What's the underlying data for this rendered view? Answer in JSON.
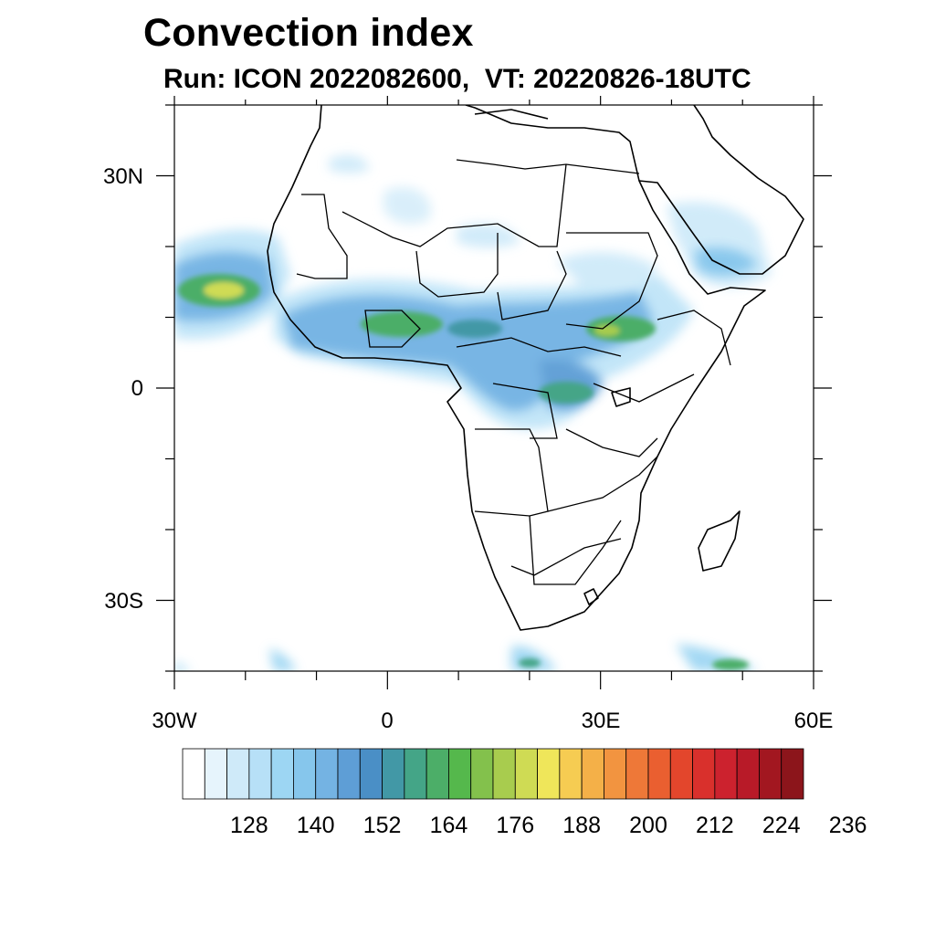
{
  "title": "Convection index",
  "subtitle": "Run: ICON 2022082600,  VT: 20220826-18UTC",
  "map": {
    "lon_range": [
      -30,
      60
    ],
    "lat_range": [
      -40,
      40
    ],
    "x_ticks": [
      {
        "lon": -30,
        "label": "30W"
      },
      {
        "lon": 0,
        "label": "0"
      },
      {
        "lon": 30,
        "label": "30E"
      },
      {
        "lon": 60,
        "label": "60E"
      }
    ],
    "y_ticks": [
      {
        "lat": 30,
        "label": "30N"
      },
      {
        "lat": 0,
        "label": "0"
      },
      {
        "lat": -30,
        "label": "30S"
      }
    ]
  },
  "colorbar": {
    "labels": [
      "128",
      "140",
      "152",
      "164",
      "176",
      "188",
      "200",
      "212",
      "224",
      "236"
    ],
    "colors": [
      "#ffffff",
      "#e6f4fc",
      "#cfeaf9",
      "#b7e0f7",
      "#9dd6f3",
      "#86c6ec",
      "#74b3e3",
      "#5e9ed6",
      "#4a8fc6",
      "#4298a6",
      "#44a587",
      "#4cae68",
      "#55b84c",
      "#83c14c",
      "#a8cc4e",
      "#cfdb54",
      "#efe65a",
      "#f6cc52",
      "#f4b048",
      "#f29440",
      "#ee7838",
      "#ea5f30",
      "#e3462c",
      "#d9302c",
      "#cc222e",
      "#b81a28",
      "#a21720",
      "#8c151b"
    ]
  }
}
